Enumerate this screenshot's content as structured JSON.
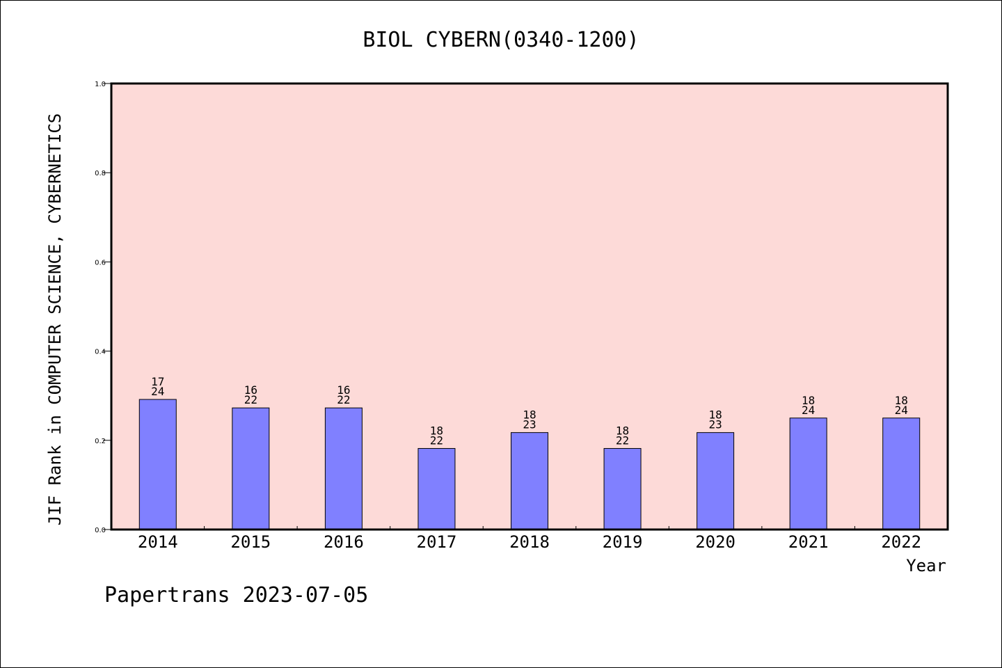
{
  "chart_data": {
    "type": "bar",
    "title": "BIOL CYBERN(0340-1200)",
    "ylabel": "JIF Rank in COMPUTER SCIENCE, CYBERNETICS",
    "xlabel": "Year",
    "footer": "Papertrans 2023-07-05",
    "ylim": [
      0,
      1.0
    ],
    "yticks": [
      "0.0",
      "0.2",
      "0.4",
      "0.6",
      "0.8",
      "1.0"
    ],
    "categories": [
      "2014",
      "2015",
      "2016",
      "2017",
      "2018",
      "2019",
      "2020",
      "2021",
      "2022"
    ],
    "ranks": [
      17,
      16,
      16,
      18,
      18,
      18,
      18,
      18,
      18
    ],
    "totals": [
      24,
      22,
      22,
      22,
      23,
      22,
      23,
      24,
      24
    ],
    "values": [
      0.2917,
      0.2727,
      0.2727,
      0.1818,
      0.2174,
      0.1818,
      0.2174,
      0.25,
      0.25
    ],
    "colors": {
      "plot_bg": "#fddad8",
      "bar": "#8080ff"
    },
    "grid": false
  }
}
